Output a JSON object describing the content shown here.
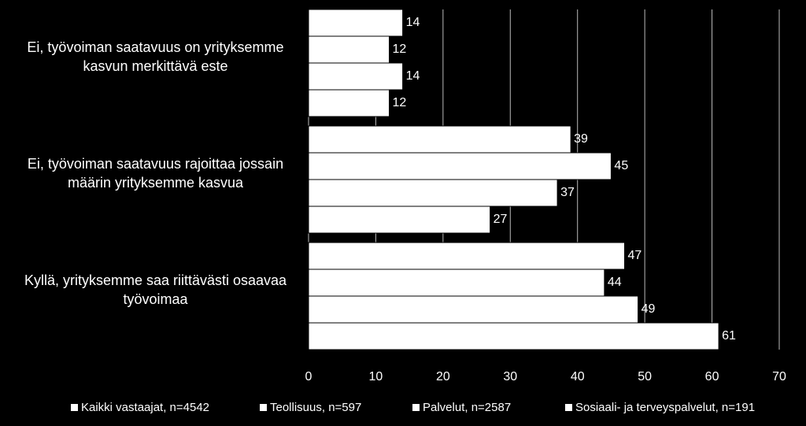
{
  "chart_data": {
    "type": "bar",
    "orientation": "horizontal",
    "categories": [
      "Ei, työvoiman saatavuus on yrityksemme kasvun merkittävä este",
      "Ei, työvoiman saatavuus rajoittaa jossain määrin yrityksemme kasvua",
      "Kyllä, yrityksemme saa riittävästi osaavaa työvoimaa"
    ],
    "series": [
      {
        "name": "Kaikki vastaajat, n=4542",
        "color": "#ffffff",
        "values": [
          14,
          39,
          47
        ]
      },
      {
        "name": "Teollisuus, n=597",
        "color": "#ffffff",
        "values": [
          12,
          45,
          44
        ]
      },
      {
        "name": "Palvelut, n=2587",
        "color": "#ffffff",
        "values": [
          14,
          37,
          49
        ]
      },
      {
        "name": "Sosiaali- ja terveyspalvelut, n=191",
        "color": "#ffffff",
        "values": [
          12,
          27,
          61
        ]
      }
    ],
    "xlim": [
      0,
      70
    ],
    "xticks": [
      0,
      10,
      20,
      30,
      40,
      50,
      60,
      70
    ],
    "grid": true,
    "legend": "bottom"
  }
}
